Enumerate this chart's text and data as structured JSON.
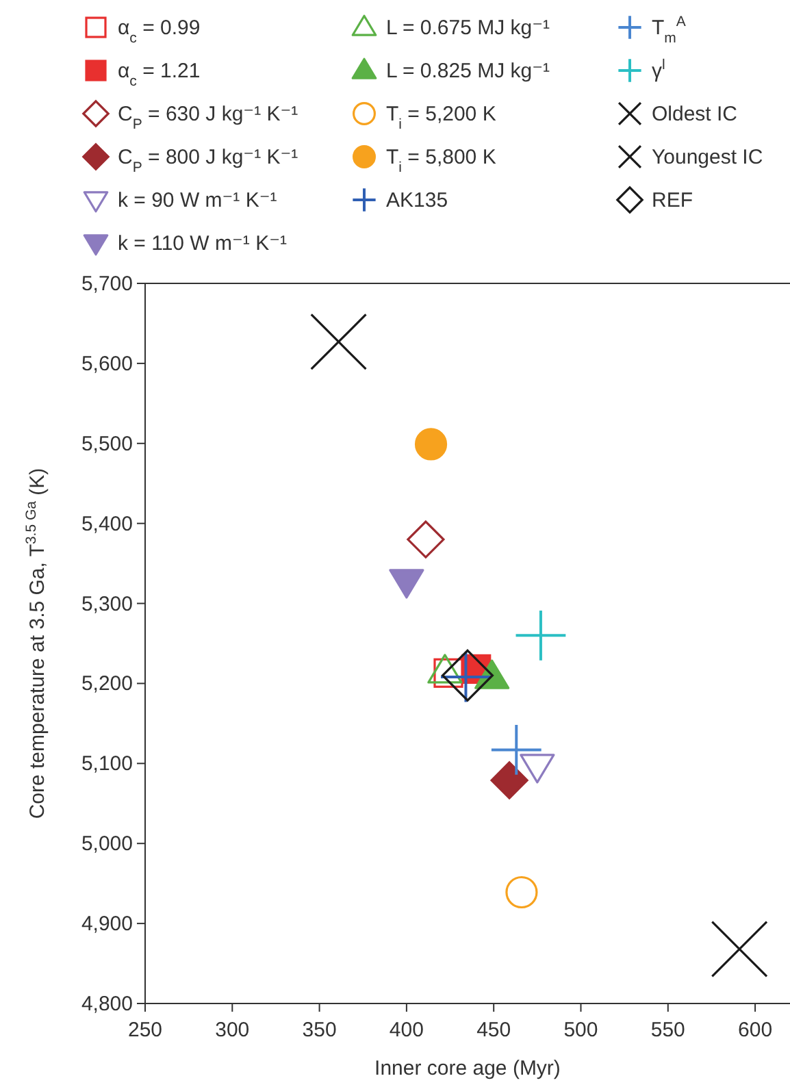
{
  "chart_data": {
    "type": "scatter",
    "xlabel": "Inner core age (Myr)",
    "ylabel": "Core temperature at 3.5 Ga, T$^{3.5 Ga}$ (K)",
    "xlim": [
      250,
      620
    ],
    "xticks": [
      250,
      300,
      350,
      400,
      450,
      500,
      550,
      600
    ],
    "ylim": [
      4800,
      5700
    ],
    "yticks": [
      {
        "value": 4800,
        "label": "4,800"
      },
      {
        "value": 4900,
        "label": "4,900"
      },
      {
        "value": 5000,
        "label": "5,000"
      },
      {
        "value": 5100,
        "label": "5,100"
      },
      {
        "value": 5200,
        "label": "5,200"
      },
      {
        "value": 5300,
        "label": "5,300"
      },
      {
        "value": 5400,
        "label": "5,400"
      },
      {
        "value": 5500,
        "label": "5,500"
      },
      {
        "value": 5600,
        "label": "5,600"
      },
      {
        "value": 5700,
        "label": "5,700"
      }
    ],
    "grid": false,
    "legend": "top",
    "series": [
      {
        "name": "α$_{c}$ = 0.99",
        "color": "#e8302f",
        "marker": "square",
        "x": [
          424
        ],
        "values": [
          5213
        ]
      },
      {
        "name": "α$_{c}$ = 1.21",
        "color": "#e8302f",
        "marker": "square",
        "x": [
          440
        ],
        "values": [
          5218
        ]
      },
      {
        "name": "C$_{P}$ = 630 J kg⁻¹ K⁻¹",
        "color": "#9e2a2f",
        "marker": "diamond",
        "x": [
          411
        ],
        "values": [
          5380
        ]
      },
      {
        "name": "C$_{P}$ = 800 J kg⁻¹ K⁻¹",
        "color": "#9e2a2f",
        "marker": "diamond",
        "x": [
          459
        ],
        "values": [
          5079
        ]
      },
      {
        "name": "k = 90 W m⁻¹ K⁻¹",
        "color": "#8c7bbf",
        "marker": "triangle",
        "x": [
          475
        ],
        "values": [
          5097
        ]
      },
      {
        "name": "k = 110 W m⁻¹ K⁻¹",
        "color": "#8c7bbf",
        "marker": "triangle",
        "x": [
          400
        ],
        "values": [
          5328
        ]
      },
      {
        "name": "L = 0.675 MJ kg⁻¹",
        "color": "#5bb146",
        "marker": "triangle",
        "x": [
          422
        ],
        "values": [
          5215
        ]
      },
      {
        "name": "L = 0.825 MJ kg⁻¹",
        "color": "#5bb146",
        "marker": "triangle",
        "x": [
          449
        ],
        "values": [
          5208
        ]
      },
      {
        "name": "T$_{i}$ = 5,200 K",
        "color": "#f7a21e",
        "marker": "circle",
        "x": [
          466
        ],
        "values": [
          4939
        ]
      },
      {
        "name": "T$_{i}$ = 5,800 K",
        "color": "#f7a21e",
        "marker": "circle",
        "x": [
          414
        ],
        "values": [
          5499
        ]
      },
      {
        "name": "AK135",
        "color": "#2f5fb3",
        "marker": "cross",
        "x": [
          434
        ],
        "values": [
          5208
        ]
      },
      {
        "name": "T$_{m}$$^{A}$",
        "color": "#4a86d0",
        "marker": "cross",
        "x": [
          463
        ],
        "values": [
          5117
        ]
      },
      {
        "name": "γ$^{l}$",
        "color": "#2bbfc4",
        "marker": "cross",
        "x": [
          477
        ],
        "values": [
          5260
        ]
      },
      {
        "name": "Oldest IC",
        "color": "#1a1a1a",
        "marker": "cross",
        "x": [
          591
        ],
        "values": [
          4868
        ]
      },
      {
        "name": "Youngest IC",
        "color": "#1a1a1a",
        "marker": "cross",
        "x": [
          361
        ],
        "values": [
          5627
        ]
      },
      {
        "name": "REF",
        "color": "#1a1a1a",
        "marker": "diamond",
        "x": [
          435
        ],
        "values": [
          5210
        ]
      }
    ]
  }
}
